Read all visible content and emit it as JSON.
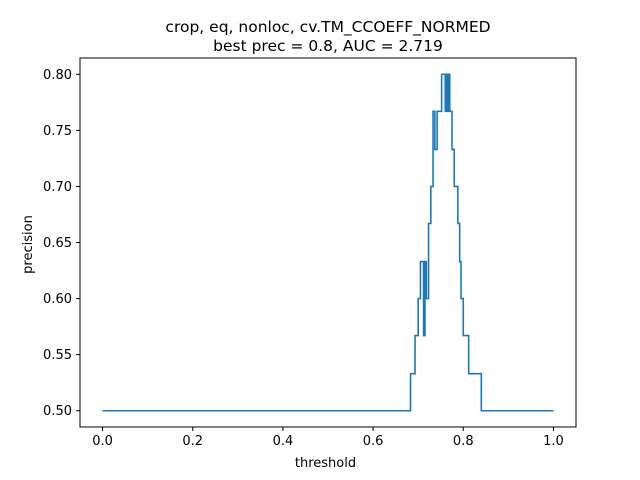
{
  "colors": {
    "line": "#1f77b4",
    "axes": "#000000",
    "background": "#ffffff"
  },
  "chart_data": {
    "type": "line",
    "title": "crop, eq, nonloc, cv.TM_CCOEFF_NORMED",
    "subtitle": "best prec = 0.8, AUC = 2.719",
    "xlabel": "threshold",
    "ylabel": "precision",
    "xlim": [
      -0.05,
      1.05
    ],
    "ylim": [
      0.4855,
      0.8145
    ],
    "xticks": [
      0.0,
      0.2,
      0.4,
      0.6,
      0.8,
      1.0
    ],
    "xtick_labels": [
      "0.0",
      "0.2",
      "0.4",
      "0.6",
      "0.8",
      "1.0"
    ],
    "yticks": [
      0.5,
      0.55,
      0.6,
      0.65,
      0.7,
      0.75,
      0.8
    ],
    "ytick_labels": [
      "0.50",
      "0.55",
      "0.60",
      "0.65",
      "0.70",
      "0.75",
      "0.80"
    ],
    "grid": false,
    "line_style": "steps",
    "series": [
      {
        "x": [
          0.0,
          0.683,
          0.683,
          0.693,
          0.693,
          0.7,
          0.7,
          0.705,
          0.705,
          0.712,
          0.712,
          0.715,
          0.715,
          0.718,
          0.718,
          0.723,
          0.723,
          0.728,
          0.728,
          0.73,
          0.73,
          0.733,
          0.733,
          0.737,
          0.737,
          0.742,
          0.742,
          0.747,
          0.747,
          0.752,
          0.752,
          0.76,
          0.76,
          0.763,
          0.763,
          0.765,
          0.765,
          0.768,
          0.768,
          0.77,
          0.77,
          0.775,
          0.775,
          0.78,
          0.78,
          0.788,
          0.788,
          0.792,
          0.792,
          0.795,
          0.795,
          0.8,
          0.8,
          0.807,
          0.807,
          0.812,
          0.812,
          0.84,
          0.84,
          0.933,
          0.933,
          1.0
        ],
        "y": [
          0.5,
          0.5,
          0.533,
          0.533,
          0.567,
          0.567,
          0.6,
          0.6,
          0.633,
          0.633,
          0.567,
          0.567,
          0.633,
          0.633,
          0.6,
          0.6,
          0.667,
          0.667,
          0.7,
          0.7,
          0.7,
          0.7,
          0.767,
          0.767,
          0.733,
          0.733,
          0.767,
          0.767,
          0.767,
          0.767,
          0.8,
          0.8,
          0.767,
          0.767,
          0.8,
          0.8,
          0.767,
          0.767,
          0.8,
          0.8,
          0.767,
          0.767,
          0.733,
          0.733,
          0.7,
          0.7,
          0.667,
          0.667,
          0.633,
          0.633,
          0.6,
          0.6,
          0.567,
          0.567,
          0.567,
          0.567,
          0.533,
          0.533,
          0.5,
          0.5,
          0.5,
          0.5
        ]
      }
    ]
  }
}
